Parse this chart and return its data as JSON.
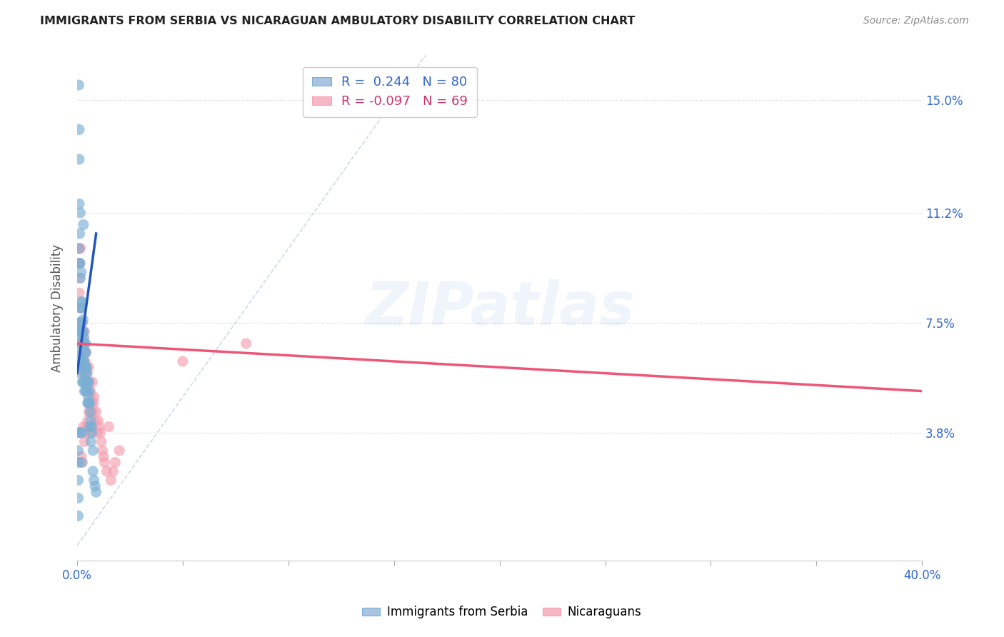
{
  "title": "IMMIGRANTS FROM SERBIA VS NICARAGUAN AMBULATORY DISABILITY CORRELATION CHART",
  "source": "Source: ZipAtlas.com",
  "ylabel": "Ambulatory Disability",
  "ytick_labels": [
    "15.0%",
    "11.2%",
    "7.5%",
    "3.8%"
  ],
  "ytick_values": [
    0.15,
    0.112,
    0.075,
    0.038
  ],
  "xlim": [
    0.0,
    0.4
  ],
  "ylim": [
    -0.005,
    0.165
  ],
  "legend_entries": [
    {
      "label": "R =  0.244   N = 80",
      "color": "#a8c4e0",
      "text_color": "#3366cc"
    },
    {
      "label": "R = -0.097   N = 69",
      "color": "#f5b8c4",
      "text_color": "#cc3366"
    }
  ],
  "serbia_color": "#7aafd4",
  "nicaragua_color": "#f4a0b0",
  "serbia_scatter_x": [
    0.0005,
    0.0008,
    0.001,
    0.001,
    0.0012,
    0.0012,
    0.0015,
    0.0015,
    0.0015,
    0.0015,
    0.0018,
    0.0018,
    0.0018,
    0.002,
    0.002,
    0.002,
    0.002,
    0.0022,
    0.0022,
    0.0022,
    0.0025,
    0.0025,
    0.0025,
    0.0025,
    0.0028,
    0.0028,
    0.0028,
    0.003,
    0.003,
    0.003,
    0.0032,
    0.0032,
    0.0032,
    0.0035,
    0.0035,
    0.0035,
    0.0038,
    0.0038,
    0.004,
    0.004,
    0.004,
    0.0042,
    0.0042,
    0.0045,
    0.0045,
    0.0048,
    0.005,
    0.005,
    0.0052,
    0.0055,
    0.0055,
    0.0058,
    0.006,
    0.006,
    0.0062,
    0.0065,
    0.0065,
    0.0068,
    0.007,
    0.0075,
    0.0075,
    0.008,
    0.0085,
    0.009,
    0.001,
    0.0008,
    0.0012,
    0.0015,
    0.0018,
    0.002,
    0.0005,
    0.0005,
    0.0005,
    0.0005,
    0.0005,
    0.0005,
    0.0008,
    0.001,
    0.002,
    0.003
  ],
  "serbia_scatter_y": [
    0.075,
    0.062,
    0.13,
    0.115,
    0.072,
    0.095,
    0.09,
    0.08,
    0.068,
    0.058,
    0.082,
    0.072,
    0.065,
    0.092,
    0.08,
    0.07,
    0.06,
    0.075,
    0.068,
    0.06,
    0.082,
    0.072,
    0.062,
    0.055,
    0.076,
    0.068,
    0.06,
    0.072,
    0.062,
    0.055,
    0.07,
    0.062,
    0.055,
    0.068,
    0.06,
    0.052,
    0.065,
    0.058,
    0.068,
    0.06,
    0.052,
    0.065,
    0.055,
    0.06,
    0.052,
    0.058,
    0.055,
    0.048,
    0.05,
    0.055,
    0.048,
    0.052,
    0.048,
    0.04,
    0.045,
    0.042,
    0.035,
    0.04,
    0.038,
    0.032,
    0.025,
    0.022,
    0.02,
    0.018,
    0.14,
    0.155,
    0.105,
    0.112,
    0.038,
    0.038,
    0.038,
    0.032,
    0.028,
    0.022,
    0.016,
    0.01,
    0.1,
    0.095,
    0.028,
    0.108
  ],
  "nicaragua_scatter_x": [
    0.0008,
    0.001,
    0.0012,
    0.0015,
    0.0015,
    0.0018,
    0.002,
    0.002,
    0.0022,
    0.0022,
    0.0025,
    0.0025,
    0.0028,
    0.0028,
    0.003,
    0.003,
    0.0032,
    0.0032,
    0.0035,
    0.0035,
    0.0038,
    0.004,
    0.004,
    0.0042,
    0.0045,
    0.0048,
    0.005,
    0.0052,
    0.0055,
    0.0058,
    0.006,
    0.0062,
    0.0065,
    0.0068,
    0.007,
    0.0072,
    0.0075,
    0.0078,
    0.008,
    0.0085,
    0.009,
    0.0095,
    0.01,
    0.0105,
    0.011,
    0.0115,
    0.012,
    0.0125,
    0.013,
    0.014,
    0.015,
    0.016,
    0.017,
    0.018,
    0.02,
    0.0012,
    0.0015,
    0.002,
    0.0025,
    0.003,
    0.0035,
    0.004,
    0.0045,
    0.005,
    0.0055,
    0.006,
    0.007,
    0.05,
    0.08
  ],
  "nicaragua_scatter_y": [
    0.095,
    0.085,
    0.09,
    0.08,
    0.095,
    0.075,
    0.072,
    0.08,
    0.075,
    0.068,
    0.075,
    0.065,
    0.072,
    0.062,
    0.07,
    0.058,
    0.068,
    0.06,
    0.065,
    0.072,
    0.062,
    0.06,
    0.055,
    0.065,
    0.058,
    0.052,
    0.055,
    0.048,
    0.06,
    0.055,
    0.048,
    0.052,
    0.05,
    0.045,
    0.048,
    0.055,
    0.045,
    0.048,
    0.05,
    0.042,
    0.045,
    0.038,
    0.042,
    0.04,
    0.038,
    0.035,
    0.032,
    0.03,
    0.028,
    0.025,
    0.04,
    0.022,
    0.025,
    0.028,
    0.032,
    0.1,
    0.1,
    0.03,
    0.028,
    0.04,
    0.035,
    0.038,
    0.04,
    0.042,
    0.045,
    0.038,
    0.04,
    0.062,
    0.068
  ],
  "serbia_line_x": [
    0.0,
    0.009
  ],
  "serbia_line_y": [
    0.058,
    0.105
  ],
  "nicaragua_line_x": [
    0.0,
    0.4
  ],
  "nicaragua_line_y": [
    0.068,
    0.052
  ],
  "diagonal_line_x": [
    0.0,
    0.165
  ],
  "diagonal_line_y": [
    0.0,
    0.165
  ],
  "background_color": "#ffffff",
  "grid_color": "#dddddd"
}
